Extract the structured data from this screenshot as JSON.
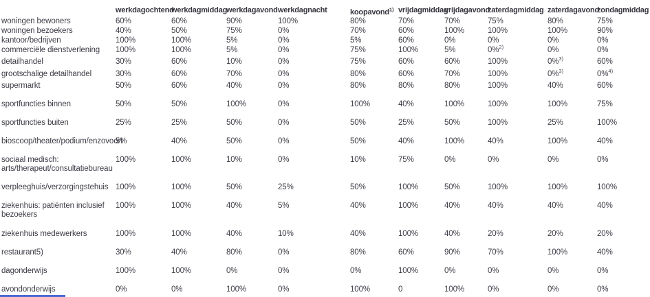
{
  "colors": {
    "text": "#3c3c46",
    "header_text": "#35353f",
    "accent_blue": "#4b6bd1"
  },
  "chart_data": {
    "type": "table",
    "columns": [
      {
        "label": "werkdagochtend"
      },
      {
        "label": "werkdagmiddag"
      },
      {
        "label": "werkdagavond"
      },
      {
        "label": "werkdagnacht"
      },
      {
        "label": "koopavond",
        "sup": "1)"
      },
      {
        "label": "vrijdagmiddag"
      },
      {
        "label": "vrijdagavond"
      },
      {
        "label": "zaterdagmiddag"
      },
      {
        "label": "zaterdagavond"
      },
      {
        "label": "zondagmiddag"
      }
    ],
    "rows": [
      {
        "label": "woningen bewoners",
        "values": [
          "60%",
          "60%",
          "90%",
          "100%",
          "80%",
          "70%",
          "70%",
          "75%",
          "80%",
          "75%"
        ]
      },
      {
        "label": "woningen bezoekers",
        "values": [
          "40%",
          "50%",
          "75%",
          "0%",
          "70%",
          "60%",
          "100%",
          "100%",
          "100%",
          "90%"
        ]
      },
      {
        "label": "kantoor/bedrijven",
        "values": [
          "100%",
          "100%",
          "5%",
          "0%",
          "5%",
          "60%",
          "0%",
          "0%",
          "0%",
          "0%"
        ]
      },
      {
        "label": "commerciële dienstverlening",
        "values": [
          "100%",
          "100%",
          "5%",
          "0%",
          "75%",
          "100%",
          "5%",
          "0%^2)",
          "0%",
          "0%"
        ]
      },
      {
        "label": "detailhandel",
        "values": [
          "30%",
          "60%",
          "10%",
          "0%",
          "75%",
          "60%",
          "60%",
          "100%",
          "0%^3)",
          "60%"
        ]
      },
      {
        "label": "grootschalige detailhandel",
        "values": [
          "30%",
          "60%",
          "70%",
          "0%",
          "80%",
          "60%",
          "70%",
          "100%",
          "0%^3)",
          "0%^4)"
        ]
      },
      {
        "label": "supermarkt",
        "values": [
          "50%",
          "60%",
          "40%",
          "0%",
          "80%",
          "80%",
          "80%",
          "100%",
          "40%",
          "60%"
        ]
      },
      {
        "label": "sportfuncties binnen",
        "values": [
          "50%",
          "50%",
          "100%",
          "0%",
          "100%",
          "40%",
          "100%",
          "100%",
          "100%",
          "75%"
        ]
      },
      {
        "label": "sportfuncties buiten",
        "values": [
          "25%",
          "25%",
          "50%",
          "0%",
          "50%",
          "25%",
          "50%",
          "100%",
          "25%",
          "100%"
        ]
      },
      {
        "label": "bioscoop/theater/podium/enzovoort",
        "values": [
          "5%",
          "40%",
          "50%",
          "0%",
          "50%",
          "40%",
          "100%",
          "40%",
          "100%",
          "40%"
        ]
      },
      {
        "label": "sociaal medisch:\narts/therapeut/consultatiebureau",
        "values": [
          "100%",
          "100%",
          "10%",
          "0%",
          "10%",
          "75%",
          "0%",
          "0%",
          "0%",
          "0%"
        ]
      },
      {
        "label": "verpleeghuis/verzorgingstehuis",
        "values": [
          "100%",
          "100%",
          "50%",
          "25%",
          "50%",
          "100%",
          "50%",
          "100%",
          "100%",
          "100%"
        ]
      },
      {
        "label": "ziekenhuis: patiënten inclusief\nbezoekers",
        "values": [
          "100%",
          "100%",
          "40%",
          "5%",
          "40%",
          "100%",
          "40%",
          "40%",
          "40%",
          "40%"
        ]
      },
      {
        "label": "ziekenhuis medewerkers",
        "values": [
          "100%",
          "100%",
          "40%",
          "10%",
          "40%",
          "100%",
          "40%",
          "20%",
          "20%",
          "20%"
        ]
      },
      {
        "label": "restaurant5)",
        "values": [
          "30%",
          "40%",
          "80%",
          "0%",
          "80%",
          "60%",
          "90%",
          "70%",
          "100%",
          "40%"
        ]
      },
      {
        "label": "dagonderwijs",
        "values": [
          "100%",
          "100%",
          "0%",
          "0%",
          "0%",
          "100%",
          "0%",
          "0%",
          "0%",
          "0%"
        ]
      },
      {
        "label": "avondonderwijs",
        "values": [
          "0%",
          "0%",
          "100%",
          "0%",
          "100%",
          "0",
          "100%",
          "0%",
          "0%",
          "0%"
        ]
      }
    ]
  }
}
